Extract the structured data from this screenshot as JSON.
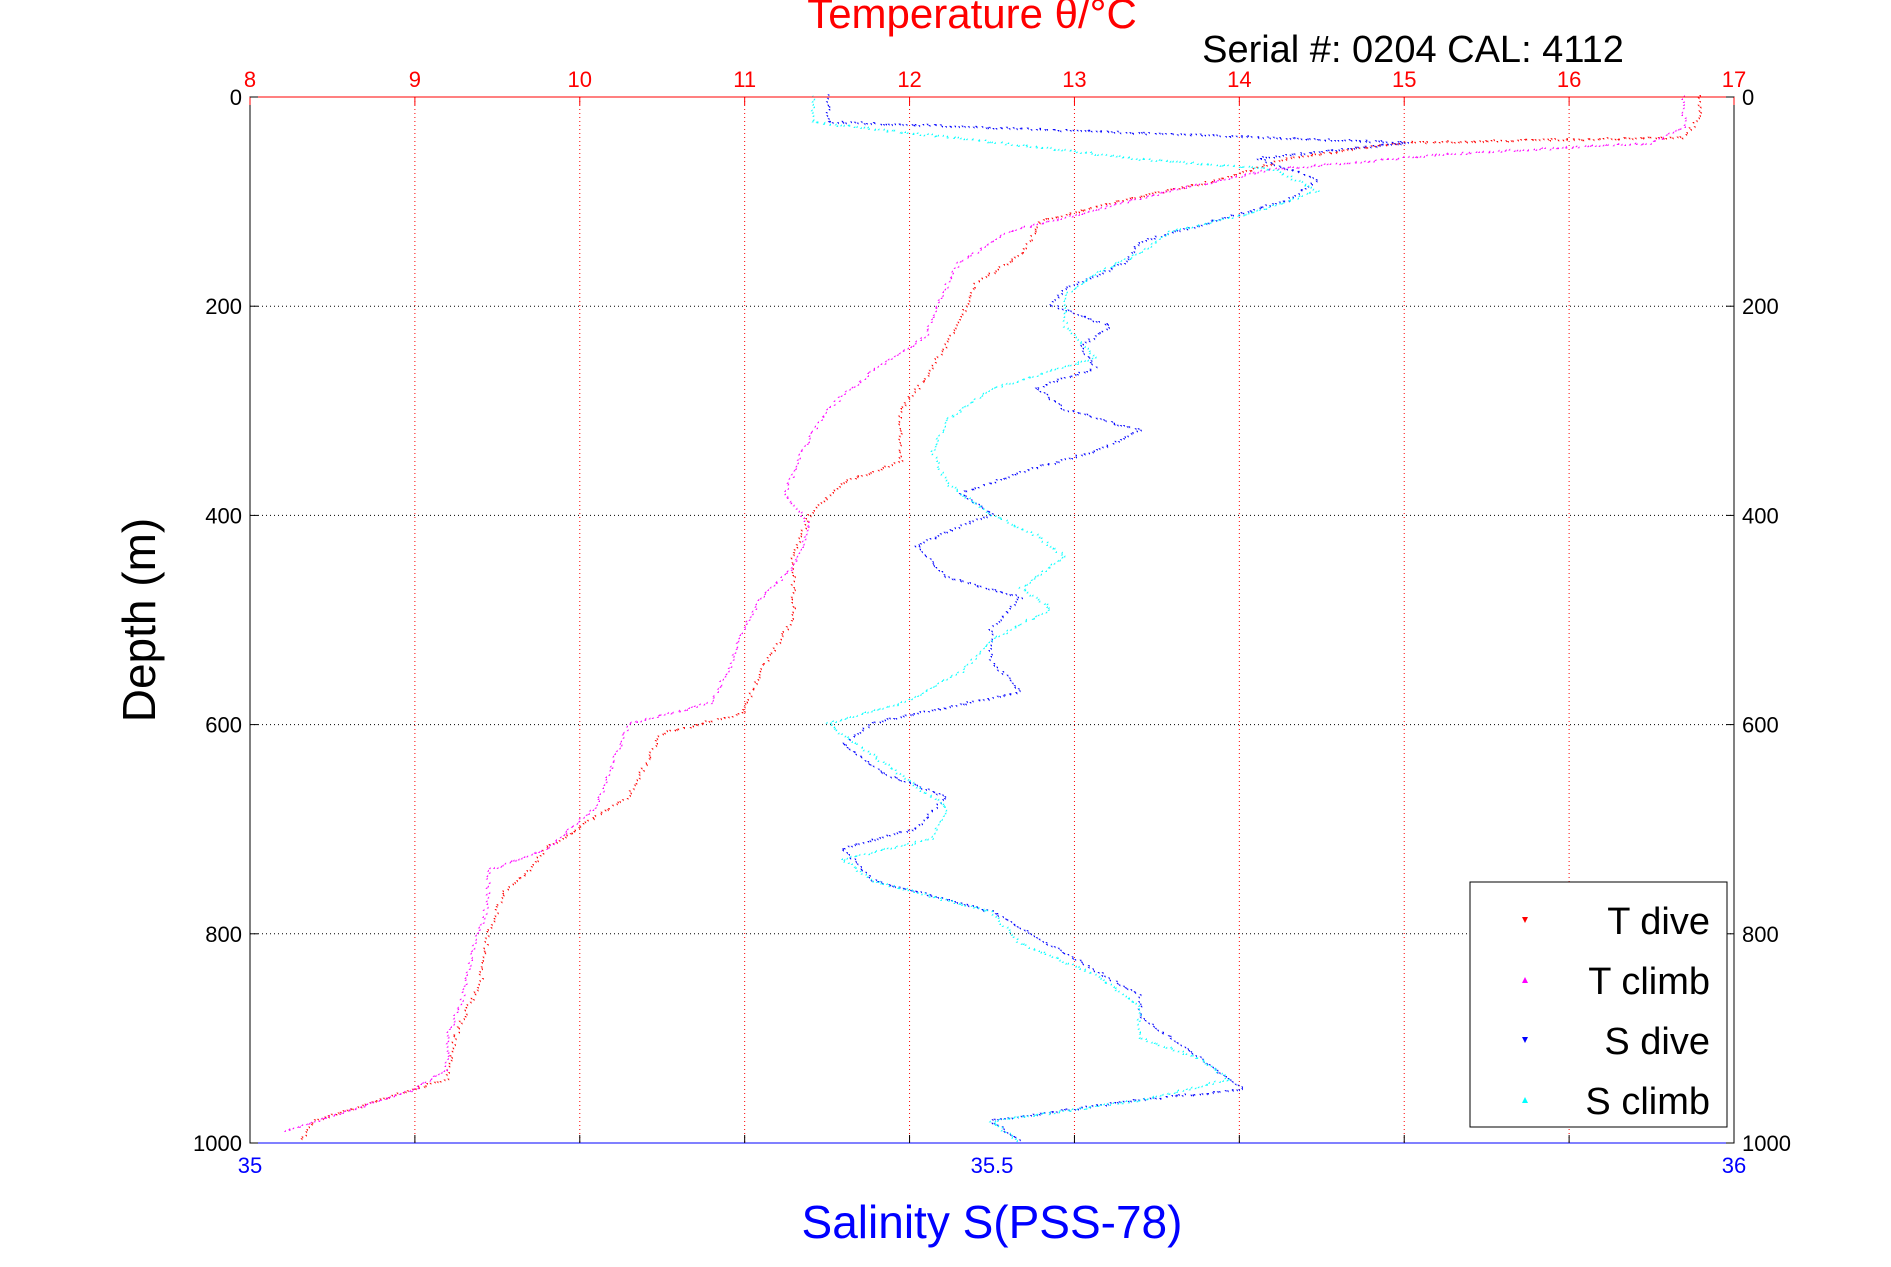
{
  "chart_data": {
    "type": "scatter",
    "title": "Temperature θ/°C",
    "subtitle": "Serial #: 0204  CAL: 4112",
    "xlabel": "Salinity S(PSS-78)",
    "ylabel": "Depth (m)",
    "x_top_ticks": [
      "8",
      "9",
      "10",
      "11",
      "12",
      "13",
      "14",
      "15",
      "16",
      "17"
    ],
    "x_bottom_ticks": [
      "35",
      "35.5",
      "36"
    ],
    "y_ticks": [
      "0",
      "200",
      "400",
      "600",
      "800",
      "1000"
    ],
    "temperature_range": [
      8,
      17
    ],
    "salinity_range": [
      35,
      36
    ],
    "depth_range": [
      0,
      1000
    ],
    "y_reversed": true,
    "grid": true,
    "legend_position": "bottom-right",
    "colors": {
      "temperature_axis": "#ff0000",
      "salinity_axis": "#0000ff",
      "T dive": "#ff0000",
      "T climb": "#ff00ff",
      "S dive": "#0000ff",
      "S climb": "#00ffff"
    },
    "series": [
      {
        "name": "T dive",
        "axis": "temperature",
        "marker": "triangle-down",
        "points": [
          [
            16.8,
            0
          ],
          [
            16.8,
            20
          ],
          [
            16.7,
            40
          ],
          [
            15.0,
            45
          ],
          [
            14.3,
            60
          ],
          [
            13.9,
            80
          ],
          [
            13.3,
            100
          ],
          [
            12.8,
            120
          ],
          [
            12.7,
            150
          ],
          [
            12.4,
            180
          ],
          [
            12.3,
            220
          ],
          [
            12.1,
            270
          ],
          [
            11.95,
            300
          ],
          [
            11.95,
            350
          ],
          [
            11.6,
            370
          ],
          [
            11.4,
            400
          ],
          [
            11.3,
            440
          ],
          [
            11.3,
            500
          ],
          [
            11.1,
            550
          ],
          [
            11.0,
            590
          ],
          [
            10.5,
            610
          ],
          [
            10.4,
            640
          ],
          [
            10.3,
            670
          ],
          [
            10.0,
            700
          ],
          [
            9.8,
            720
          ],
          [
            9.7,
            740
          ],
          [
            9.55,
            760
          ],
          [
            9.45,
            800
          ],
          [
            9.4,
            850
          ],
          [
            9.3,
            880
          ],
          [
            9.25,
            900
          ],
          [
            9.2,
            940
          ],
          [
            8.8,
            960
          ],
          [
            8.4,
            980
          ],
          [
            8.3,
            1000
          ]
        ]
      },
      {
        "name": "T climb",
        "axis": "temperature",
        "marker": "triangle-up",
        "points": [
          [
            16.7,
            0
          ],
          [
            16.7,
            30
          ],
          [
            16.5,
            45
          ],
          [
            15.3,
            55
          ],
          [
            14.2,
            70
          ],
          [
            13.6,
            90
          ],
          [
            13.1,
            110
          ],
          [
            12.6,
            130
          ],
          [
            12.3,
            160
          ],
          [
            12.2,
            190
          ],
          [
            12.1,
            230
          ],
          [
            11.8,
            260
          ],
          [
            11.5,
            300
          ],
          [
            11.35,
            340
          ],
          [
            11.25,
            380
          ],
          [
            11.4,
            410
          ],
          [
            11.3,
            450
          ],
          [
            11.1,
            480
          ],
          [
            11.0,
            510
          ],
          [
            10.9,
            550
          ],
          [
            10.8,
            580
          ],
          [
            10.3,
            600
          ],
          [
            10.2,
            640
          ],
          [
            10.1,
            680
          ],
          [
            9.8,
            720
          ],
          [
            9.45,
            740
          ],
          [
            9.45,
            770
          ],
          [
            9.35,
            820
          ],
          [
            9.3,
            860
          ],
          [
            9.2,
            900
          ],
          [
            9.2,
            930
          ],
          [
            9.0,
            950
          ],
          [
            8.6,
            970
          ],
          [
            8.2,
            990
          ]
        ]
      },
      {
        "name": "S dive",
        "axis": "salinity",
        "marker": "triangle-down",
        "points": [
          [
            35.39,
            0
          ],
          [
            35.39,
            25
          ],
          [
            35.78,
            45
          ],
          [
            35.68,
            60
          ],
          [
            35.72,
            80
          ],
          [
            35.7,
            100
          ],
          [
            35.65,
            120
          ],
          [
            35.6,
            140
          ],
          [
            35.59,
            160
          ],
          [
            35.55,
            185
          ],
          [
            35.54,
            200
          ],
          [
            35.58,
            220
          ],
          [
            35.56,
            240
          ],
          [
            35.57,
            260
          ],
          [
            35.53,
            280
          ],
          [
            35.55,
            300
          ],
          [
            35.6,
            320
          ],
          [
            35.57,
            340
          ],
          [
            35.52,
            360
          ],
          [
            35.48,
            380
          ],
          [
            35.5,
            400
          ],
          [
            35.45,
            430
          ],
          [
            35.47,
            460
          ],
          [
            35.52,
            480
          ],
          [
            35.5,
            510
          ],
          [
            35.5,
            540
          ],
          [
            35.52,
            570
          ],
          [
            35.42,
            600
          ],
          [
            35.4,
            620
          ],
          [
            35.43,
            650
          ],
          [
            35.47,
            670
          ],
          [
            35.45,
            700
          ],
          [
            35.4,
            720
          ],
          [
            35.42,
            750
          ],
          [
            35.5,
            780
          ],
          [
            35.55,
            820
          ],
          [
            35.6,
            860
          ],
          [
            35.6,
            880
          ],
          [
            35.62,
            900
          ],
          [
            35.65,
            930
          ],
          [
            35.67,
            950
          ],
          [
            35.6,
            960
          ],
          [
            35.5,
            980
          ],
          [
            35.52,
            1000
          ]
        ]
      },
      {
        "name": "S climb",
        "axis": "salinity",
        "marker": "triangle-up",
        "points": [
          [
            35.38,
            0
          ],
          [
            35.38,
            25
          ],
          [
            35.54,
            50
          ],
          [
            35.6,
            60
          ],
          [
            35.69,
            70
          ],
          [
            35.72,
            90
          ],
          [
            35.68,
            110
          ],
          [
            35.62,
            130
          ],
          [
            35.6,
            150
          ],
          [
            35.57,
            170
          ],
          [
            35.55,
            190
          ],
          [
            35.55,
            220
          ],
          [
            35.57,
            250
          ],
          [
            35.5,
            280
          ],
          [
            35.47,
            310
          ],
          [
            35.46,
            340
          ],
          [
            35.47,
            370
          ],
          [
            35.5,
            400
          ],
          [
            35.53,
            420
          ],
          [
            35.55,
            440
          ],
          [
            35.52,
            470
          ],
          [
            35.54,
            490
          ],
          [
            35.5,
            520
          ],
          [
            35.48,
            550
          ],
          [
            35.44,
            580
          ],
          [
            35.39,
            600
          ],
          [
            35.41,
            620
          ],
          [
            35.44,
            650
          ],
          [
            35.47,
            680
          ],
          [
            35.46,
            710
          ],
          [
            35.4,
            730
          ],
          [
            35.42,
            750
          ],
          [
            35.5,
            780
          ],
          [
            35.52,
            810
          ],
          [
            35.57,
            840
          ],
          [
            35.6,
            870
          ],
          [
            35.6,
            900
          ],
          [
            35.64,
            920
          ],
          [
            35.66,
            940
          ],
          [
            35.6,
            960
          ],
          [
            35.5,
            980
          ],
          [
            35.52,
            1000
          ]
        ]
      }
    ]
  }
}
